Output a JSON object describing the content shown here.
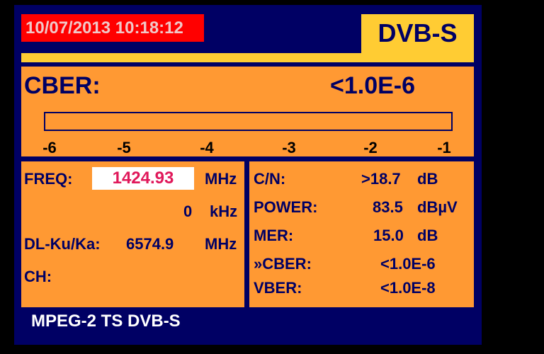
{
  "header": {
    "datetime": "10/07/2013 10:18:12",
    "mode": "DVB-S"
  },
  "cber_panel": {
    "label": "CBER:",
    "value": "<1.0E-6",
    "bar_fill_fraction": 0,
    "scale": [
      "-6",
      "-5",
      "-4",
      "-3",
      "-2",
      "-1"
    ]
  },
  "left_panel": {
    "freq_label": "FREQ:",
    "freq_value": "1424.93",
    "freq_unit": "MHz",
    "offset_value": "0",
    "offset_unit": "kHz",
    "dl_label": "DL-Ku/Ka:",
    "dl_value": "6574.9",
    "dl_unit": "MHz",
    "ch_label": "CH:"
  },
  "measurements": [
    {
      "label": "C/N:",
      "value": ">18.7",
      "unit": "dB"
    },
    {
      "label": "POWER:",
      "value": "83.5",
      "unit": "dBµV"
    },
    {
      "label": "MER:",
      "value": "15.0",
      "unit": "dB"
    },
    {
      "label": "»CBER:",
      "value": "<1.0E-6",
      "unit": ""
    },
    {
      "label": "VBER:",
      "value": "<1.0E-8",
      "unit": ""
    }
  ],
  "footer": {
    "status": "MPEG-2 TS DVB-S"
  },
  "colors": {
    "frame": "#000064",
    "panel": "#ff9933",
    "mode_bg": "#ffcc33",
    "datetime_bg": "#ff0000",
    "freq_text": "#e0185a"
  }
}
